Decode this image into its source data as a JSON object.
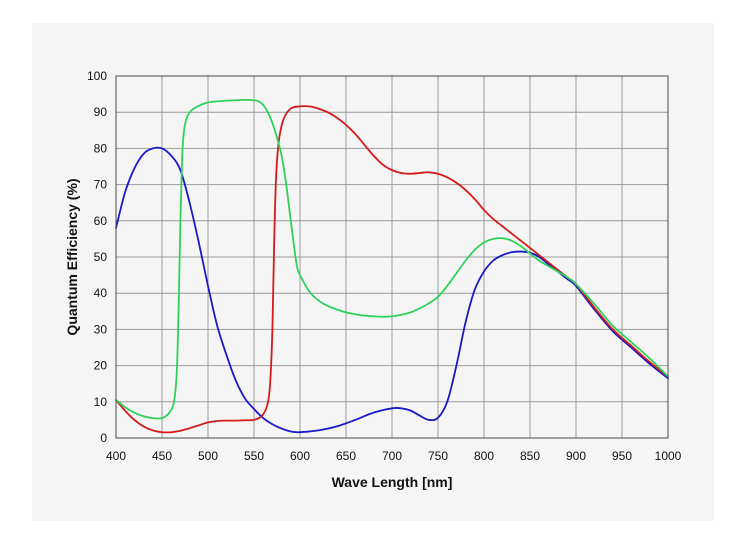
{
  "chart_data": {
    "type": "line",
    "title": "",
    "xlabel": "Wave Length [nm]",
    "ylabel": "Quantum Efficiency (%)",
    "xlim": [
      400,
      1000
    ],
    "ylim": [
      0,
      100
    ],
    "xticks": [
      400,
      450,
      500,
      550,
      600,
      650,
      700,
      750,
      800,
      850,
      900,
      950,
      1000
    ],
    "yticks": [
      0,
      10,
      20,
      30,
      40,
      50,
      60,
      70,
      80,
      90,
      100
    ],
    "xtick_labels": [
      "400",
      "450",
      "500",
      "550",
      "600",
      "650",
      "700",
      "750",
      "800",
      "850",
      "900",
      "950",
      "1000"
    ],
    "ytick_labels": [
      "0",
      "10",
      "20",
      "30",
      "40",
      "50",
      "60",
      "70",
      "80",
      "90",
      "100"
    ],
    "grid": true,
    "legend": "none",
    "series": [
      {
        "color": "#1a1ac8",
        "x": [
          400,
          410,
          420,
          430,
          440,
          450,
          460,
          470,
          480,
          490,
          500,
          510,
          520,
          530,
          540,
          550,
          560,
          570,
          580,
          590,
          600,
          620,
          640,
          660,
          680,
          700,
          710,
          720,
          730,
          740,
          750,
          760,
          770,
          780,
          790,
          800,
          810,
          820,
          830,
          840,
          850,
          860,
          870,
          880,
          890,
          900,
          920,
          940,
          960,
          980,
          1000
        ],
        "y": [
          58,
          68,
          74.5,
          78.5,
          80,
          80,
          78,
          74,
          65,
          54,
          42,
          31,
          23,
          16,
          11,
          8,
          5.5,
          3.8,
          2.6,
          1.8,
          1.6,
          2.1,
          3.2,
          5.0,
          7.0,
          8.2,
          8.2,
          7.6,
          6.2,
          5.0,
          5.6,
          10,
          20,
          32,
          41,
          46,
          49,
          50.5,
          51.3,
          51.5,
          51.2,
          50,
          48,
          46,
          44,
          42,
          35.5,
          29.5,
          25,
          20.5,
          16.5
        ]
      },
      {
        "color": "#d41a1a",
        "x": [
          400,
          410,
          420,
          430,
          440,
          450,
          460,
          470,
          480,
          490,
          500,
          510,
          520,
          530,
          540,
          550,
          558,
          563,
          566,
          568,
          570,
          572,
          574,
          577,
          582,
          590,
          600,
          610,
          620,
          630,
          640,
          650,
          660,
          670,
          680,
          690,
          700,
          710,
          720,
          730,
          740,
          750,
          760,
          770,
          780,
          790,
          800,
          810,
          820,
          830,
          840,
          850,
          860,
          870,
          880,
          890,
          900,
          920,
          940,
          960,
          980,
          1000
        ],
        "y": [
          10.5,
          7.5,
          5,
          3.2,
          2.1,
          1.6,
          1.6,
          2.0,
          2.7,
          3.5,
          4.3,
          4.7,
          4.8,
          4.8,
          4.9,
          5.0,
          6.0,
          8.0,
          11,
          17,
          30,
          55,
          72,
          82,
          88,
          91,
          91.6,
          91.6,
          91,
          90,
          88.5,
          86.5,
          84,
          81,
          78,
          75.5,
          74,
          73.2,
          73,
          73.2,
          73.4,
          73,
          72,
          70.5,
          68.5,
          66,
          63,
          60.5,
          58.5,
          56.5,
          54.5,
          52.5,
          50.5,
          48.5,
          46.5,
          44.5,
          42.5,
          36,
          30,
          25.5,
          21,
          17
        ]
      },
      {
        "color": "#2ed25a",
        "x": [
          400,
          410,
          420,
          430,
          440,
          450,
          458,
          463,
          466,
          468,
          470,
          472,
          474,
          477,
          482,
          488,
          495,
          500,
          510,
          520,
          530,
          540,
          550,
          555,
          560,
          565,
          570,
          575,
          580,
          585,
          590,
          594,
          597,
          600,
          610,
          620,
          630,
          640,
          650,
          660,
          670,
          680,
          690,
          700,
          710,
          720,
          730,
          740,
          750,
          760,
          770,
          780,
          790,
          800,
          810,
          820,
          830,
          840,
          850,
          860,
          870,
          880,
          890,
          900,
          920,
          940,
          960,
          980,
          1000
        ],
        "y": [
          10.5,
          8.5,
          7,
          6,
          5.5,
          5.5,
          7,
          10,
          18,
          35,
          60,
          78,
          85,
          88.5,
          90.5,
          91.5,
          92.3,
          92.7,
          93,
          93.2,
          93.3,
          93.4,
          93.3,
          93,
          92,
          90,
          87,
          83,
          78,
          70,
          60,
          52,
          47,
          45,
          40.5,
          38,
          36.5,
          35.5,
          34.7,
          34.2,
          33.8,
          33.6,
          33.5,
          33.6,
          34,
          34.7,
          35.8,
          37.2,
          39,
          42,
          45.5,
          49,
          52,
          54,
          55,
          55.2,
          54.5,
          53,
          51,
          49,
          47.5,
          46,
          44.5,
          42.5,
          37,
          31,
          26.5,
          22,
          17
        ]
      }
    ]
  }
}
